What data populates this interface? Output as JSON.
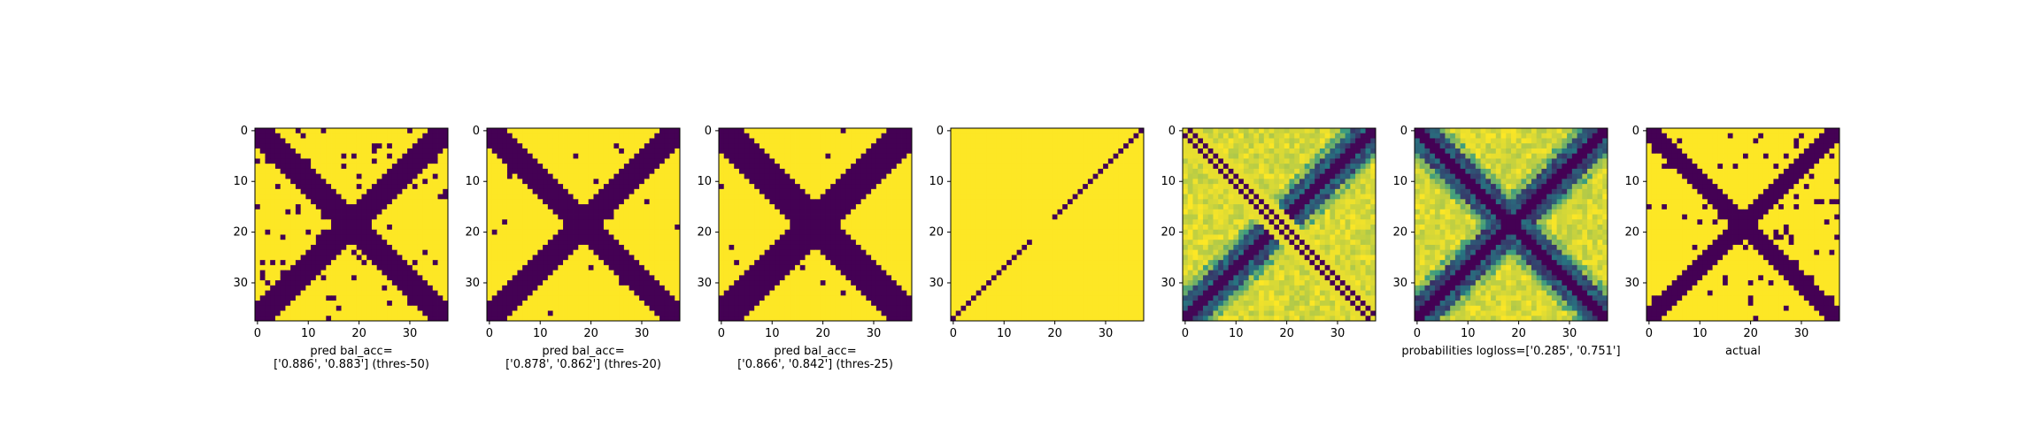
{
  "chart_data": [
    {
      "type": "heatmap",
      "pattern": "x-binary-noisy",
      "caption_lines": [
        "pred bal_acc=",
        "['0.886', '0.883'] (thres-50)"
      ],
      "xticks": [
        "0",
        "10",
        "20",
        "30"
      ],
      "yticks": [
        "0",
        "10",
        "20",
        "30"
      ],
      "xlim": [
        0,
        38
      ],
      "ylim": [
        0,
        38
      ],
      "colormap": "viridis"
    },
    {
      "type": "heatmap",
      "pattern": "x-binary-light",
      "caption_lines": [
        "pred bal_acc=",
        "['0.878', '0.862'] (thres-20)"
      ],
      "xticks": [
        "0",
        "10",
        "20",
        "30"
      ],
      "yticks": [
        "0",
        "10",
        "20",
        "30"
      ],
      "xlim": [
        0,
        38
      ],
      "ylim": [
        0,
        38
      ],
      "colormap": "viridis"
    },
    {
      "type": "heatmap",
      "pattern": "x-binary-wide",
      "caption_lines": [
        "pred bal_acc=",
        "['0.866', '0.842'] (thres-25)"
      ],
      "xticks": [
        "0",
        "10",
        "20",
        "30"
      ],
      "yticks": [
        "0",
        "10",
        "20",
        "30"
      ],
      "xlim": [
        0,
        38
      ],
      "ylim": [
        0,
        38
      ],
      "colormap": "viridis"
    },
    {
      "type": "heatmap",
      "pattern": "anti-diagonal-line",
      "caption_lines": [],
      "xticks": [
        "0",
        "10",
        "20",
        "30"
      ],
      "yticks": [
        "0",
        "10",
        "20",
        "30"
      ],
      "xlim": [
        0,
        38
      ],
      "ylim": [
        0,
        38
      ],
      "colormap": "viridis"
    },
    {
      "type": "heatmap",
      "pattern": "x-continuous-split",
      "caption_lines": [],
      "xticks": [
        "0",
        "10",
        "20",
        "30"
      ],
      "yticks": [
        "0",
        "10",
        "20",
        "30"
      ],
      "xlim": [
        0,
        38
      ],
      "ylim": [
        0,
        38
      ],
      "colormap": "viridis"
    },
    {
      "type": "heatmap",
      "pattern": "x-continuous",
      "caption_lines": [
        "probabilities logloss=['0.285', '0.751']"
      ],
      "xticks": [
        "0",
        "10",
        "20",
        "30"
      ],
      "yticks": [
        "0",
        "10",
        "20",
        "30"
      ],
      "xlim": [
        0,
        38
      ],
      "ylim": [
        0,
        38
      ],
      "colormap": "viridis"
    },
    {
      "type": "heatmap",
      "pattern": "x-binary-actual",
      "caption_lines": [
        "actual"
      ],
      "xticks": [
        "0",
        "10",
        "20",
        "30"
      ],
      "yticks": [
        "0",
        "10",
        "20",
        "30"
      ],
      "xlim": [
        0,
        38
      ],
      "ylim": [
        0,
        38
      ],
      "colormap": "viridis"
    }
  ],
  "colors": {
    "low": "#440154",
    "mid": "#21918c",
    "high": "#fde725"
  }
}
